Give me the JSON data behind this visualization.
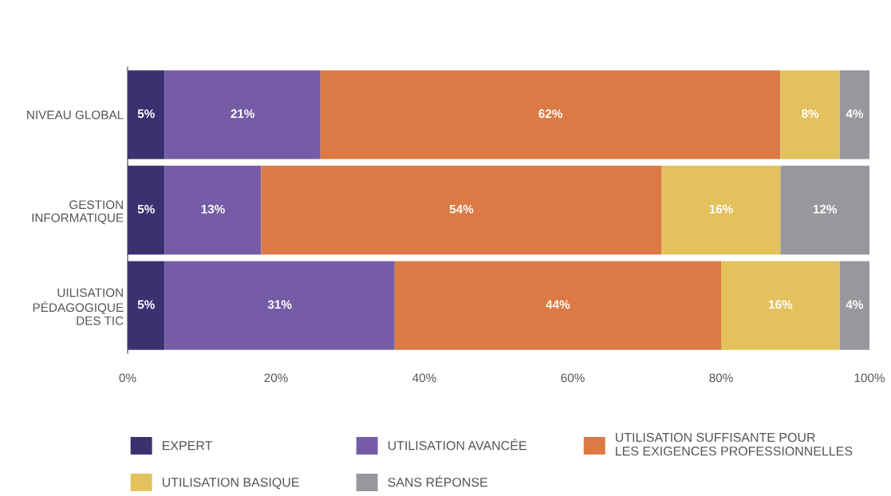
{
  "chart_data": {
    "type": "bar",
    "orientation": "horizontal",
    "stacked": true,
    "categories": [
      "NIVEAU GLOBAL",
      "GESTION INFORMATIQUE",
      "UILISATION PÉDAGOGIQUE DES TIC"
    ],
    "series": [
      {
        "name": "EXPERT",
        "color": "#3b3170",
        "values": [
          5,
          5,
          5
        ],
        "value_labels": [
          "5%",
          "5%",
          "5%"
        ]
      },
      {
        "name": "UTILISATION AVANCÉE",
        "color": "#765ca6",
        "values": [
          21,
          13,
          31
        ],
        "value_labels": [
          "21%",
          "13%",
          "31%"
        ]
      },
      {
        "name": "UTILISATION SUFFISANTE POUR LES EXIGENCES PROFESSIONNELLES",
        "color": "#db7a45",
        "values": [
          62,
          54,
          44
        ],
        "value_labels": [
          "62%",
          "54%",
          "44%"
        ]
      },
      {
        "name": "UTILISATION BASIQUE",
        "color": "#e3c15c",
        "values": [
          8,
          16,
          16
        ],
        "value_labels": [
          "8%",
          "16%",
          "16%"
        ]
      },
      {
        "name": "SANS RÉPONSE",
        "color": "#98989c",
        "values": [
          4,
          12,
          4
        ],
        "value_labels": [
          "4%",
          "12%",
          "4%"
        ]
      }
    ],
    "xlim": [
      0,
      100
    ],
    "xticks": [
      {
        "value": 0,
        "label": "0%"
      },
      {
        "value": 20,
        "label": "20%"
      },
      {
        "value": 40,
        "label": "40%"
      },
      {
        "value": 60,
        "label": "60%"
      },
      {
        "value": 80,
        "label": "80%"
      },
      {
        "value": 100,
        "label": "100%"
      }
    ],
    "grid": false,
    "legend": "bottom"
  }
}
